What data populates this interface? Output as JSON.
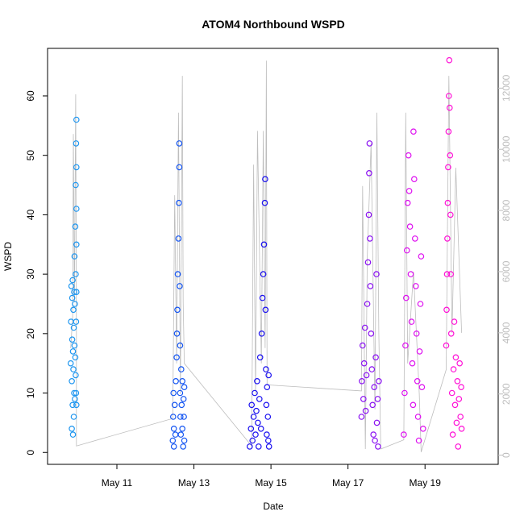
{
  "chart_data": {
    "type": "scatter",
    "title": "ATOM4 Northbound WSPD",
    "xlabel": "Date",
    "ylabel": "WSPD",
    "x_unit": "day of May",
    "xlim": [
      9.2,
      20.9
    ],
    "ylim": [
      -2,
      68
    ],
    "x_ticks": [
      {
        "value": 11,
        "label": "May 11"
      },
      {
        "value": 13,
        "label": "May 13"
      },
      {
        "value": 15,
        "label": "May 15"
      },
      {
        "value": 17,
        "label": "May 17"
      },
      {
        "value": 19,
        "label": "May 19"
      }
    ],
    "y_ticks": [
      0,
      10,
      20,
      30,
      40,
      50,
      60
    ],
    "y2_ticks": [
      0,
      2000,
      4000,
      6000,
      8000,
      10000,
      12000
    ],
    "y2lim": [
      -300,
      13300
    ],
    "series": [
      {
        "color": "#1e96f0",
        "x_range": [
          9.8,
          9.95
        ],
        "values": [
          [
            9.8,
            15
          ],
          [
            9.81,
            22
          ],
          [
            9.82,
            28
          ],
          [
            9.83,
            12
          ],
          [
            9.83,
            4
          ],
          [
            9.84,
            19
          ],
          [
            9.84,
            26
          ],
          [
            9.85,
            8
          ],
          [
            9.85,
            29
          ],
          [
            9.86,
            17
          ],
          [
            9.86,
            3
          ],
          [
            9.87,
            24
          ],
          [
            9.87,
            14
          ],
          [
            9.88,
            6
          ],
          [
            9.88,
            21
          ],
          [
            9.89,
            27
          ],
          [
            9.89,
            10
          ],
          [
            9.9,
            18
          ],
          [
            9.9,
            33
          ],
          [
            9.91,
            25
          ],
          [
            9.91,
            9
          ],
          [
            9.92,
            38
          ],
          [
            9.92,
            16
          ],
          [
            9.93,
            45
          ],
          [
            9.93,
            13
          ],
          [
            9.93,
            30
          ],
          [
            9.94,
            52
          ],
          [
            9.94,
            22
          ],
          [
            9.94,
            10
          ],
          [
            9.95,
            56
          ],
          [
            9.95,
            48
          ],
          [
            9.95,
            35
          ],
          [
            9.95,
            41
          ],
          [
            9.95,
            8
          ],
          [
            9.95,
            27
          ]
        ]
      },
      {
        "color": "#1455f2",
        "x_range": [
          12.45,
          12.75
        ],
        "values": [
          [
            12.45,
            2
          ],
          [
            12.46,
            6
          ],
          [
            12.47,
            10
          ],
          [
            12.48,
            1
          ],
          [
            12.48,
            4
          ],
          [
            12.5,
            8
          ],
          [
            12.52,
            3
          ],
          [
            12.53,
            12
          ],
          [
            12.55,
            16
          ],
          [
            12.56,
            20
          ],
          [
            12.57,
            24
          ],
          [
            12.58,
            30
          ],
          [
            12.6,
            36
          ],
          [
            12.61,
            42
          ],
          [
            12.62,
            48
          ],
          [
            12.62,
            52
          ],
          [
            12.63,
            28
          ],
          [
            12.64,
            18
          ],
          [
            12.64,
            10
          ],
          [
            12.65,
            6
          ],
          [
            12.66,
            3
          ],
          [
            12.67,
            14
          ],
          [
            12.68,
            8
          ],
          [
            12.7,
            4
          ],
          [
            12.7,
            12
          ],
          [
            12.72,
            1
          ],
          [
            12.73,
            9
          ],
          [
            12.74,
            6
          ],
          [
            12.75,
            11
          ],
          [
            12.75,
            2
          ]
        ]
      },
      {
        "color": "#1a10f0",
        "x_range": [
          14.45,
          14.95
        ],
        "values": [
          [
            14.45,
            1
          ],
          [
            14.48,
            4
          ],
          [
            14.5,
            8
          ],
          [
            14.52,
            2
          ],
          [
            14.55,
            6
          ],
          [
            14.58,
            10
          ],
          [
            14.6,
            3
          ],
          [
            14.62,
            7
          ],
          [
            14.64,
            12
          ],
          [
            14.66,
            5
          ],
          [
            14.68,
            1
          ],
          [
            14.7,
            9
          ],
          [
            14.72,
            16
          ],
          [
            14.74,
            4
          ],
          [
            14.76,
            20
          ],
          [
            14.78,
            26
          ],
          [
            14.8,
            30
          ],
          [
            14.82,
            35
          ],
          [
            14.84,
            42
          ],
          [
            14.85,
            46
          ],
          [
            14.86,
            24
          ],
          [
            14.87,
            14
          ],
          [
            14.88,
            8
          ],
          [
            14.89,
            3
          ],
          [
            14.9,
            11
          ],
          [
            14.92,
            6
          ],
          [
            14.93,
            2
          ],
          [
            14.94,
            13
          ],
          [
            14.95,
            1
          ]
        ]
      },
      {
        "color": "#8a10f2",
        "x_range": [
          17.35,
          17.8
        ],
        "values": [
          [
            17.35,
            6
          ],
          [
            17.36,
            12
          ],
          [
            17.38,
            18
          ],
          [
            17.4,
            9
          ],
          [
            17.42,
            15
          ],
          [
            17.44,
            21
          ],
          [
            17.46,
            7
          ],
          [
            17.48,
            13
          ],
          [
            17.5,
            25
          ],
          [
            17.52,
            32
          ],
          [
            17.54,
            40
          ],
          [
            17.55,
            47
          ],
          [
            17.56,
            52
          ],
          [
            17.57,
            36
          ],
          [
            17.58,
            28
          ],
          [
            17.6,
            20
          ],
          [
            17.62,
            14
          ],
          [
            17.64,
            8
          ],
          [
            17.66,
            3
          ],
          [
            17.68,
            11
          ],
          [
            17.7,
            2
          ],
          [
            17.72,
            16
          ],
          [
            17.74,
            30
          ],
          [
            17.75,
            5
          ],
          [
            17.77,
            9
          ],
          [
            17.78,
            1
          ],
          [
            17.8,
            12
          ]
        ]
      },
      {
        "color": "#de10f0",
        "x_range": [
          18.45,
          18.95
        ],
        "values": [
          [
            18.45,
            3
          ],
          [
            18.47,
            10
          ],
          [
            18.49,
            18
          ],
          [
            18.51,
            26
          ],
          [
            18.53,
            34
          ],
          [
            18.55,
            42
          ],
          [
            18.57,
            50
          ],
          [
            18.59,
            44
          ],
          [
            18.61,
            38
          ],
          [
            18.63,
            30
          ],
          [
            18.65,
            22
          ],
          [
            18.67,
            15
          ],
          [
            18.69,
            8
          ],
          [
            18.7,
            54
          ],
          [
            18.72,
            46
          ],
          [
            18.74,
            36
          ],
          [
            18.76,
            28
          ],
          [
            18.78,
            20
          ],
          [
            18.8,
            12
          ],
          [
            18.82,
            6
          ],
          [
            18.84,
            2
          ],
          [
            18.86,
            17
          ],
          [
            18.88,
            25
          ],
          [
            18.9,
            33
          ],
          [
            18.92,
            11
          ],
          [
            18.95,
            4
          ]
        ]
      },
      {
        "color": "#ff10d6",
        "x_range": [
          19.55,
          19.95
        ],
        "values": [
          [
            19.55,
            18
          ],
          [
            19.56,
            24
          ],
          [
            19.57,
            30
          ],
          [
            19.58,
            36
          ],
          [
            19.59,
            42
          ],
          [
            19.6,
            48
          ],
          [
            19.61,
            54
          ],
          [
            19.62,
            60
          ],
          [
            19.63,
            66
          ],
          [
            19.64,
            58
          ],
          [
            19.65,
            50
          ],
          [
            19.66,
            40
          ],
          [
            19.67,
            30
          ],
          [
            19.68,
            20
          ],
          [
            19.7,
            10
          ],
          [
            19.72,
            3
          ],
          [
            19.74,
            14
          ],
          [
            19.76,
            22
          ],
          [
            19.78,
            8
          ],
          [
            19.8,
            16
          ],
          [
            19.82,
            5
          ],
          [
            19.84,
            12
          ],
          [
            19.86,
            1
          ],
          [
            19.88,
            9
          ],
          [
            19.9,
            15
          ],
          [
            19.92,
            6
          ],
          [
            19.94,
            11
          ],
          [
            19.95,
            4
          ]
        ]
      }
    ],
    "secondary_line": {
      "color": "#bdbdbd",
      "axis": "right",
      "values": [
        [
          9.8,
          3500
        ],
        [
          9.85,
          4500
        ],
        [
          9.87,
          10500
        ],
        [
          9.9,
          5000
        ],
        [
          9.93,
          11800
        ],
        [
          9.95,
          4200
        ],
        [
          9.95,
          300
        ],
        [
          12.45,
          1200
        ],
        [
          12.5,
          8500
        ],
        [
          12.55,
          3000
        ],
        [
          12.6,
          11200
        ],
        [
          12.65,
          2000
        ],
        [
          12.7,
          12400
        ],
        [
          12.72,
          5000
        ],
        [
          12.75,
          3000
        ],
        [
          14.5,
          300
        ],
        [
          14.55,
          9500
        ],
        [
          14.6,
          2000
        ],
        [
          14.65,
          10600
        ],
        [
          14.75,
          3000
        ],
        [
          14.8,
          10600
        ],
        [
          14.85,
          3500
        ],
        [
          14.88,
          12900
        ],
        [
          14.9,
          2300
        ],
        [
          17.35,
          2100
        ],
        [
          17.38,
          8800
        ],
        [
          17.45,
          200
        ],
        [
          17.5,
          6500
        ],
        [
          17.6,
          10200
        ],
        [
          17.7,
          1500
        ],
        [
          17.75,
          11200
        ],
        [
          17.8,
          4000
        ],
        [
          17.85,
          200
        ],
        [
          18.45,
          500
        ],
        [
          18.5,
          11200
        ],
        [
          18.55,
          3000
        ],
        [
          18.7,
          6000
        ],
        [
          18.85,
          2000
        ],
        [
          18.9,
          100
        ],
        [
          19.55,
          2800
        ],
        [
          19.62,
          12400
        ],
        [
          19.7,
          4000
        ],
        [
          19.8,
          9400
        ],
        [
          19.95,
          4000
        ]
      ]
    }
  }
}
